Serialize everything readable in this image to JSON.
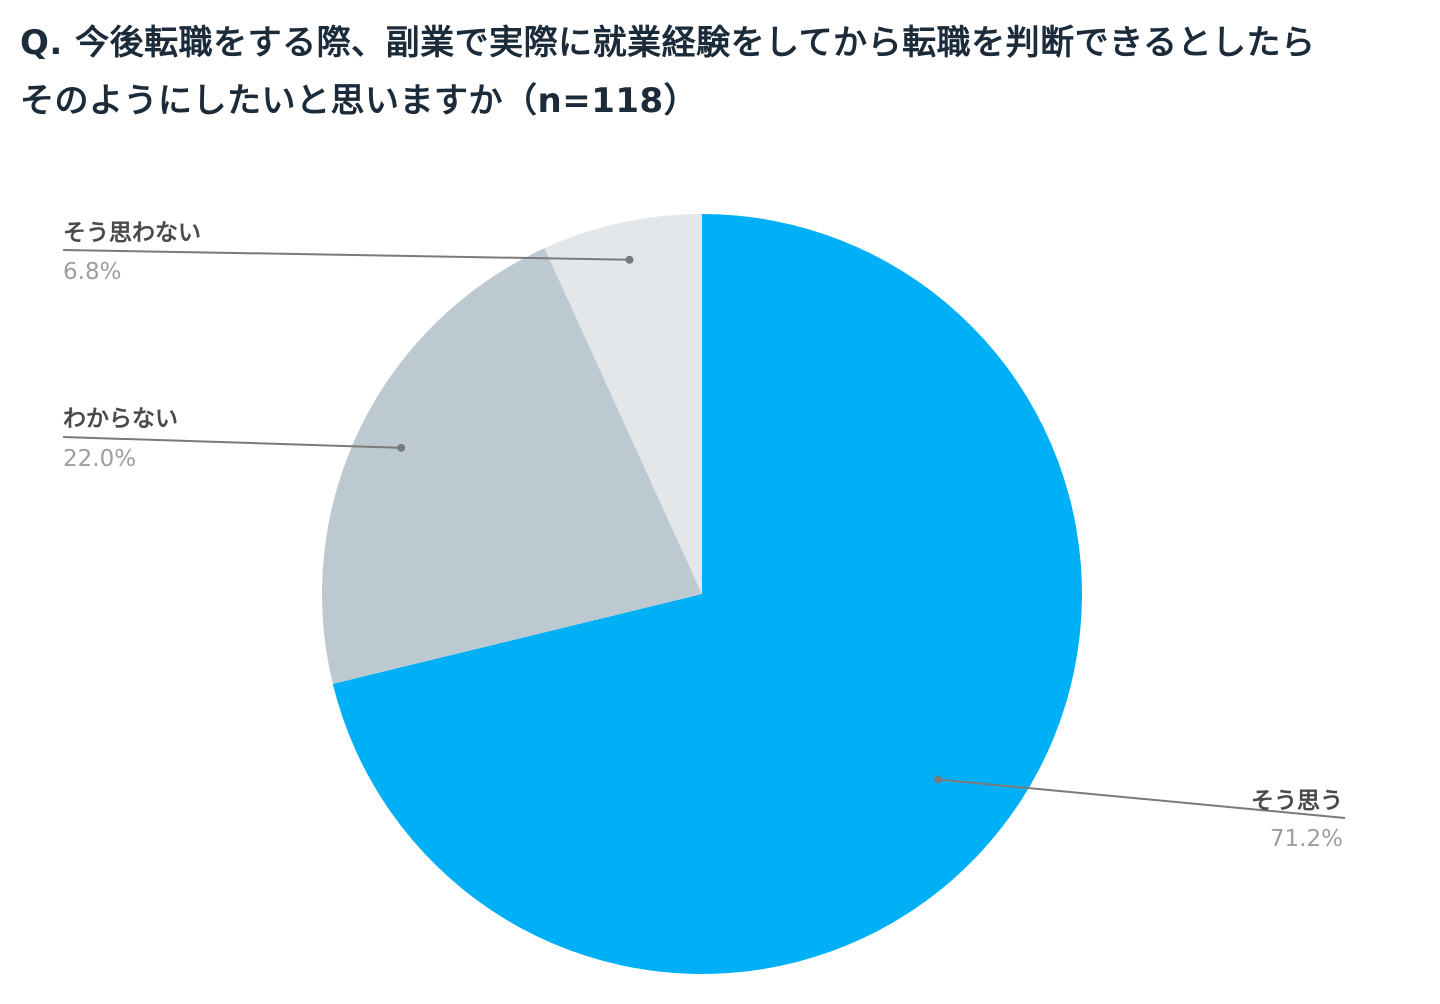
{
  "title": {
    "line1": "Q. 今後転職をする際、副業で実際に就業経験をしてから転職を判断できるとしたら",
    "line2": "そのようにしたいと思いますか（n=118）"
  },
  "chart_data": {
    "type": "pie",
    "title": "Q. 今後転職をする際、副業で実際に就業経験をしてから転職を判断できるとしたら そのようにしたいと思いますか（n=118）",
    "slices": [
      {
        "label": "そう思う",
        "value": 71.2,
        "value_label": "71.2%",
        "color": "#00b0f6"
      },
      {
        "label": "わからない",
        "value": 22.0,
        "value_label": "22.0%",
        "color": "#bdc9d0"
      },
      {
        "label": "そう思わない",
        "value": 6.8,
        "value_label": "6.8%",
        "color": "#e3e7ea"
      }
    ],
    "start_angle": "12 o'clock",
    "direction": "clockwise",
    "legend": "none (leader-line labels)"
  }
}
